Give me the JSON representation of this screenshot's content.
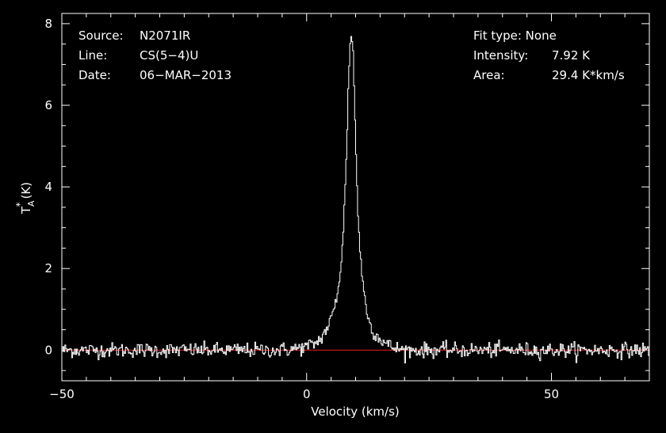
{
  "colors": {
    "background": "#000000",
    "frame": "#ffffff",
    "spectrum": "#ffffff",
    "baseline": "#d21a1a"
  },
  "info": {
    "source_label": "Source:",
    "source_value": "N2071IR",
    "line_label": "Line:",
    "line_value": "CS(5−4)U",
    "date_label": "Date:",
    "date_value": "06−MAR−2013",
    "fit_label": "Fit type: None",
    "intensity_label": "Intensity:",
    "intensity_value": "7.92 K",
    "area_label": "Area:",
    "area_value": "29.4 K*km/s"
  },
  "chart_data": {
    "type": "line",
    "title": "",
    "xlabel": "Velocity (km/s)",
    "ylabel_main": "T",
    "ylabel_sub": "A",
    "ylabel_sup": "*",
    "ylabel_unit": "(K)",
    "xlim": [
      -50,
      70
    ],
    "ylim": [
      -0.75,
      8.25
    ],
    "x_ticks": [
      -50,
      0,
      50
    ],
    "x_tick_labels": [
      "−50",
      "0",
      "50"
    ],
    "y_ticks": [
      0,
      2,
      4,
      6,
      8
    ],
    "y_tick_labels": [
      "0",
      "2",
      "4",
      "6",
      "8"
    ],
    "grid": false,
    "legend": "none",
    "series": [
      {
        "style": "histogram",
        "x": [
          -50,
          -44,
          -38,
          -32,
          -26,
          -20,
          -15,
          -10,
          -6,
          -3,
          0,
          2,
          3,
          4,
          5,
          5.5,
          6,
          6.5,
          7,
          7.5,
          8,
          8.5,
          9,
          9.5,
          10,
          10.5,
          11,
          11.5,
          12,
          12.5,
          13,
          14,
          15,
          16,
          17,
          18,
          20,
          25,
          30,
          35,
          40,
          45,
          50,
          55,
          60,
          65,
          70
        ],
        "y": [
          0.0,
          0.0,
          0.0,
          0.0,
          0.0,
          0.0,
          0.0,
          0.0,
          0.0,
          0.02,
          0.08,
          0.18,
          0.3,
          0.5,
          0.75,
          0.95,
          1.2,
          1.55,
          2.1,
          2.9,
          4.3,
          6.3,
          7.92,
          7.3,
          5.2,
          3.3,
          2.3,
          1.6,
          1.2,
          0.85,
          0.6,
          0.4,
          0.28,
          0.18,
          0.1,
          0.05,
          0.0,
          0.0,
          0.0,
          0.0,
          0.0,
          0.0,
          0.0,
          0.0,
          0.0,
          0.0,
          0.0
        ],
        "noise_rms": 0.09,
        "channel_width_kms": 0.2
      }
    ],
    "baseline": 0
  }
}
